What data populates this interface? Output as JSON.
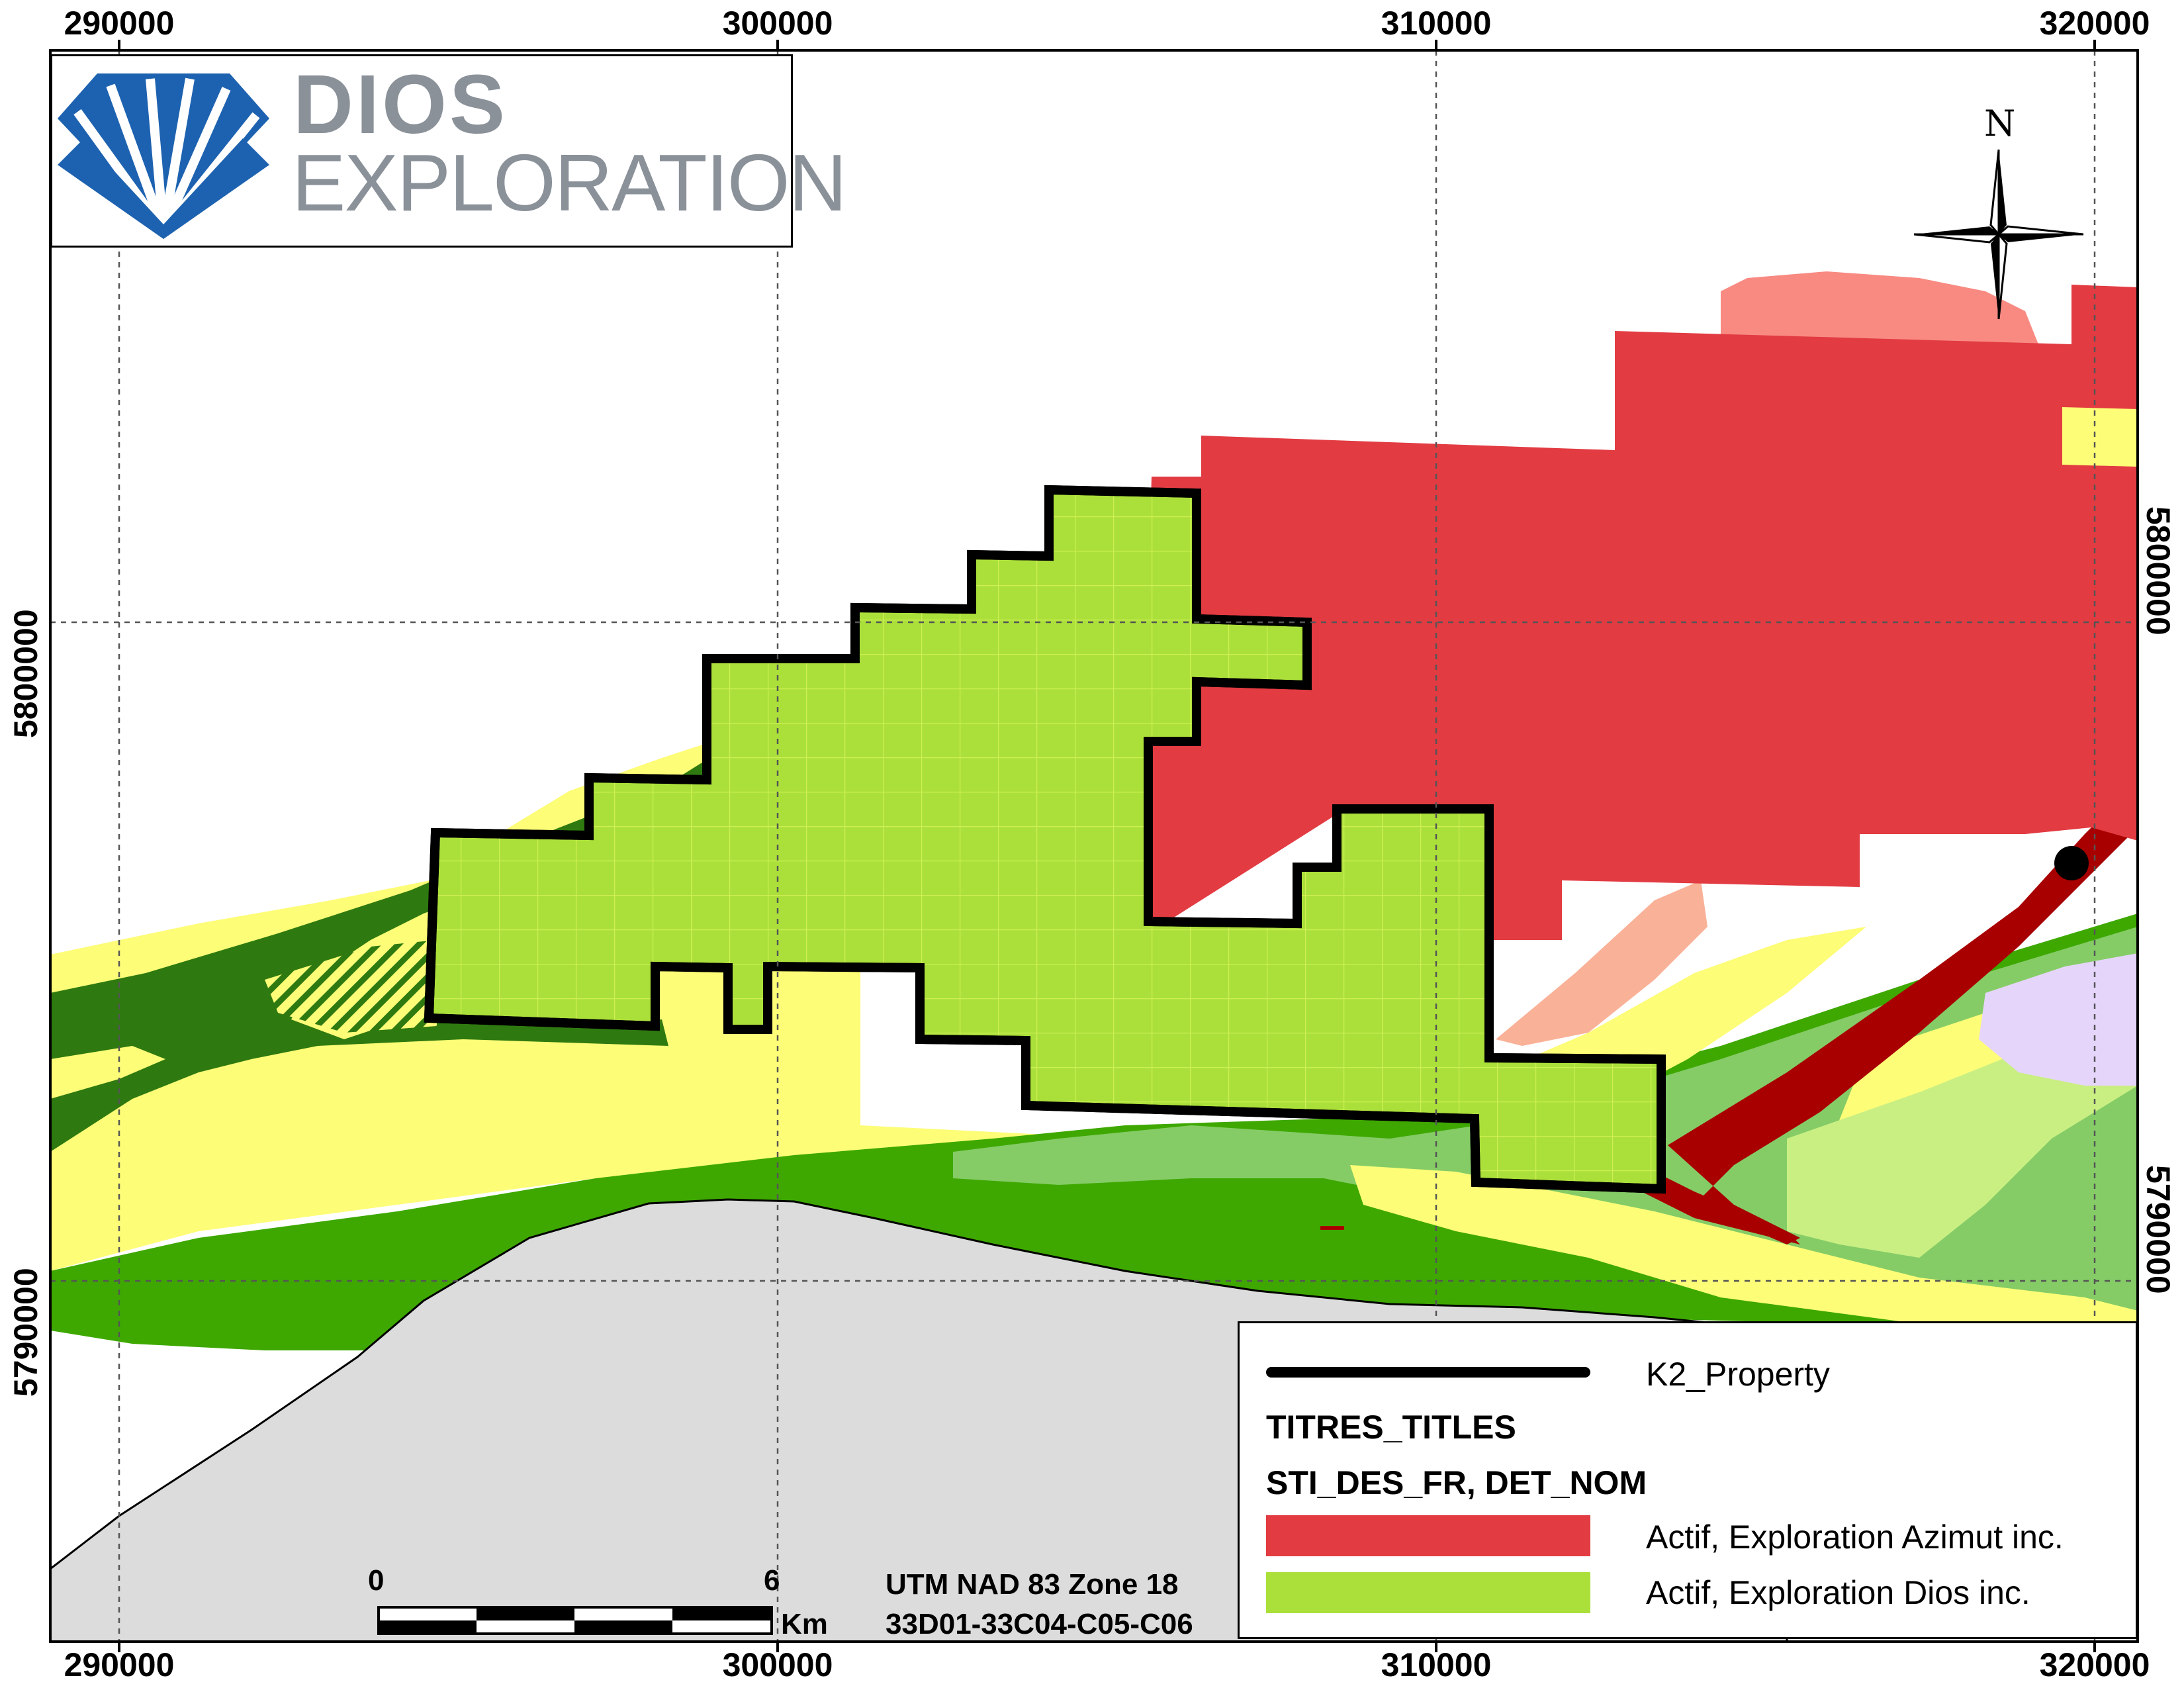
{
  "map": {
    "colors": {
      "azimut_titles": "#e23b42",
      "dios_titles": "#abe03a",
      "yellow_unit": "#fdfd77",
      "dark_green_unit": "#2f7a10",
      "green_unit": "#3ea800",
      "light_green_unit": "#85cc67",
      "pale_green_unit": "#c9ef83",
      "grey_unit": "#dcdcdc",
      "salmon_unit": "#f88a82",
      "peach_unit": "#f9b197",
      "dark_red_unit": "#a80000",
      "lavender_unit": "#e6d5fb",
      "property_outline": "#000000"
    },
    "icons": {
      "north_arrow": "compass-rose-icon",
      "logo": "dios-diamond-logo-icon",
      "showing": "black-dot-icon"
    }
  },
  "logo": {
    "line1": "DIOS",
    "line2": "EXPLORATION"
  },
  "north_arrow": {
    "label": "N"
  },
  "grid": {
    "x_labels": [
      "290000",
      "300000",
      "310000",
      "320000"
    ],
    "y_labels": [
      "5800000",
      "5790000"
    ]
  },
  "legend": {
    "property_label": "K2_Property",
    "layer_title": "TITRES_TITLES",
    "field_title": "STI_DES_FR, DET_NOM",
    "items": [
      {
        "label": "Actif, Exploration Azimut inc.",
        "color": "#e23b42"
      },
      {
        "label": "Actif, Exploration Dios inc.",
        "color": "#abe03a"
      }
    ]
  },
  "scale_bar": {
    "start_label": "0",
    "end_label": "6",
    "unit": "Km"
  },
  "projection": {
    "datum": "UTM NAD 83 Zone 18",
    "sheets": "33D01-33C04-C05-C06"
  }
}
